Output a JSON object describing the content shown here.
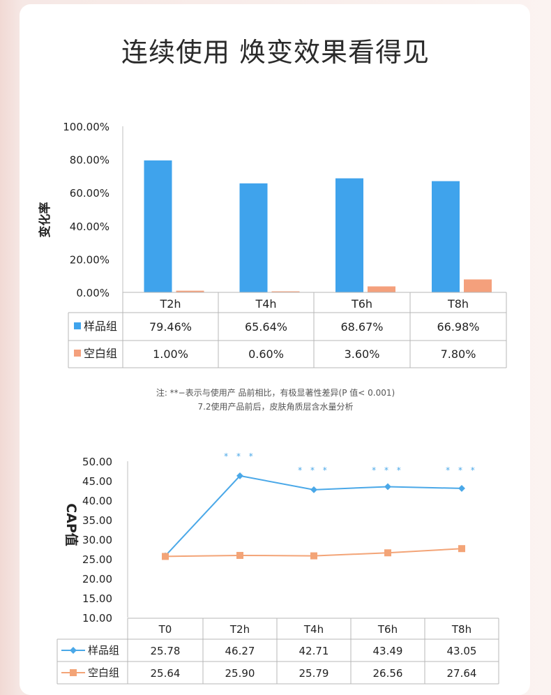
{
  "page": {
    "title": "连续使用 焕变效果看得见",
    "note_line1": "注: **−表示与使用产 品前相比，有极显著性差异(P 值< 0.001)",
    "note_line2": "7.2使用产品前后，皮肤角质层含水量分析"
  },
  "colors": {
    "blue": "#3fa3ec",
    "orange": "#f4a07c",
    "line_blue": "#4aa8e8",
    "line_orange": "#f3a477"
  },
  "chart_data": [
    {
      "type": "bar",
      "ylabel": "变化率",
      "ylim": [
        0,
        100
      ],
      "yticks": [
        "100.00%",
        "80.00%",
        "60.00%",
        "40.00%",
        "20.00%",
        "0.00%"
      ],
      "categories": [
        "T2h",
        "T4h",
        "T6h",
        "T8h"
      ],
      "series": [
        {
          "name": "样品组",
          "values": [
            79.46,
            65.64,
            68.67,
            66.98
          ],
          "labels": [
            "79.46%",
            "65.64%",
            "68.67%",
            "66.98%"
          ]
        },
        {
          "name": "空白组",
          "values": [
            1.0,
            0.6,
            3.6,
            7.8
          ],
          "labels": [
            "1.00%",
            "0.60%",
            "3.60%",
            "7.80%"
          ]
        }
      ]
    },
    {
      "type": "line",
      "ylabel": "CAP值",
      "ylim": [
        10,
        50
      ],
      "yticks": [
        "50.00",
        "45.00",
        "40.00",
        "35.00",
        "30.00",
        "25.00",
        "20.00",
        "15.00",
        "10.00"
      ],
      "categories": [
        "T0",
        "T2h",
        "T4h",
        "T6h",
        "T8h"
      ],
      "significance": [
        "",
        "* * *",
        "* * *",
        "* * *",
        "* * *"
      ],
      "series": [
        {
          "name": "样品组",
          "values": [
            25.78,
            46.27,
            42.71,
            43.49,
            43.05
          ],
          "labels": [
            "25.78",
            "46.27",
            "42.71",
            "43.49",
            "43.05"
          ]
        },
        {
          "name": "空白组",
          "values": [
            25.64,
            25.9,
            25.79,
            26.56,
            27.64
          ],
          "labels": [
            "25.64",
            "25.90",
            "25.79",
            "26.56",
            "27.64"
          ]
        }
      ]
    }
  ]
}
